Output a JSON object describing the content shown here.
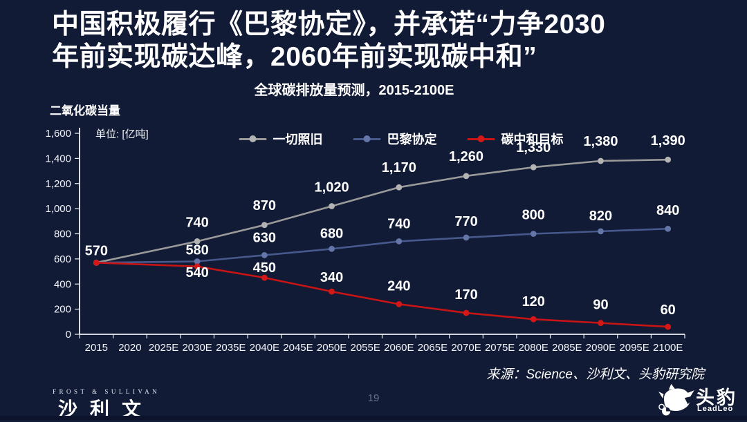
{
  "slide": {
    "title_line1": "中国积极履行《巴黎协定》，并承诺“力争2030",
    "title_line2": "年前实现碳达峰，2060年前实现碳中和”",
    "title_color": "#ffffff",
    "background_color": "#121b36",
    "source": "来源：Science、沙利文、头豹研究院",
    "page_number": "19"
  },
  "footer": {
    "frost_sullivan_en": "FROST & SULLIVAN",
    "frost_sullivan_cn": "沙利文",
    "leadleo_cn": "头豹",
    "leadleo_en": "LeadLeo",
    "leopard_icon": "leopard-head-icon"
  },
  "chart_data": {
    "type": "line",
    "title": "全球碳排放量预测，2015-2100E",
    "ylabel": "二氧化碳当量",
    "unit_label": "单位: [亿吨]",
    "xlabel": "",
    "grid": false,
    "legend_position": "top-center",
    "ylim": [
      0,
      1600
    ],
    "y_tick_step": 200,
    "y_ticks": [
      "0",
      "200",
      "400",
      "600",
      "800",
      "1,000",
      "1,200",
      "1,400",
      "1,600"
    ],
    "categories": [
      "2015",
      "2020",
      "2025E",
      "2030E",
      "2035E",
      "2040E",
      "2045E",
      "2050E",
      "2055E",
      "2060E",
      "2065E",
      "2070E",
      "2075E",
      "2080E",
      "2085E",
      "2090E",
      "2095E",
      "2100E"
    ],
    "point_category_indices": [
      0,
      3,
      5,
      7,
      9,
      11,
      13,
      15,
      17
    ],
    "point_years": [
      "2015",
      "2030E",
      "2040E",
      "2050E",
      "2060E",
      "2070E",
      "2080E",
      "2090E",
      "2100E"
    ],
    "axis_color": "#eef1f6",
    "label_color": "#ffffff",
    "series": [
      {
        "name": "一切照旧",
        "slug": "business-as-usual",
        "color": "#9a9a9a",
        "marker_color": "#b3b3b3",
        "values": [
          570,
          740,
          870,
          1020,
          1170,
          1260,
          1330,
          1380,
          1390
        ],
        "labels": [
          "570",
          "740",
          "870",
          "1,020",
          "1,170",
          "1,260",
          "1,330",
          "1,380",
          "1,390"
        ],
        "label_dy": [
          -11,
          -21,
          -22,
          -21,
          -22,
          -22,
          -22,
          -22,
          -21
        ]
      },
      {
        "name": "巴黎协定",
        "slug": "paris-agreement",
        "color": "#47598c",
        "marker_color": "#6476a8",
        "values": [
          570,
          580,
          630,
          680,
          740,
          770,
          800,
          820,
          840
        ],
        "labels": [
          null,
          "580",
          "630",
          "680",
          "740",
          "770",
          "800",
          "820",
          "840"
        ],
        "label_dy": [
          null,
          -10,
          -19,
          -16,
          -19,
          -17,
          -21,
          -16,
          -20
        ]
      },
      {
        "name": "碳中和目标",
        "slug": "carbon-neutral-target",
        "color": "#c81414",
        "marker_color": "#d41717",
        "values": [
          570,
          540,
          450,
          340,
          240,
          170,
          120,
          90,
          60
        ],
        "labels": [
          null,
          "540",
          "450",
          "340",
          "240",
          "170",
          "120",
          "90",
          "60"
        ],
        "label_dy": [
          null,
          15,
          -8,
          -14,
          -20,
          -20,
          -19,
          -20,
          -18
        ]
      }
    ]
  }
}
